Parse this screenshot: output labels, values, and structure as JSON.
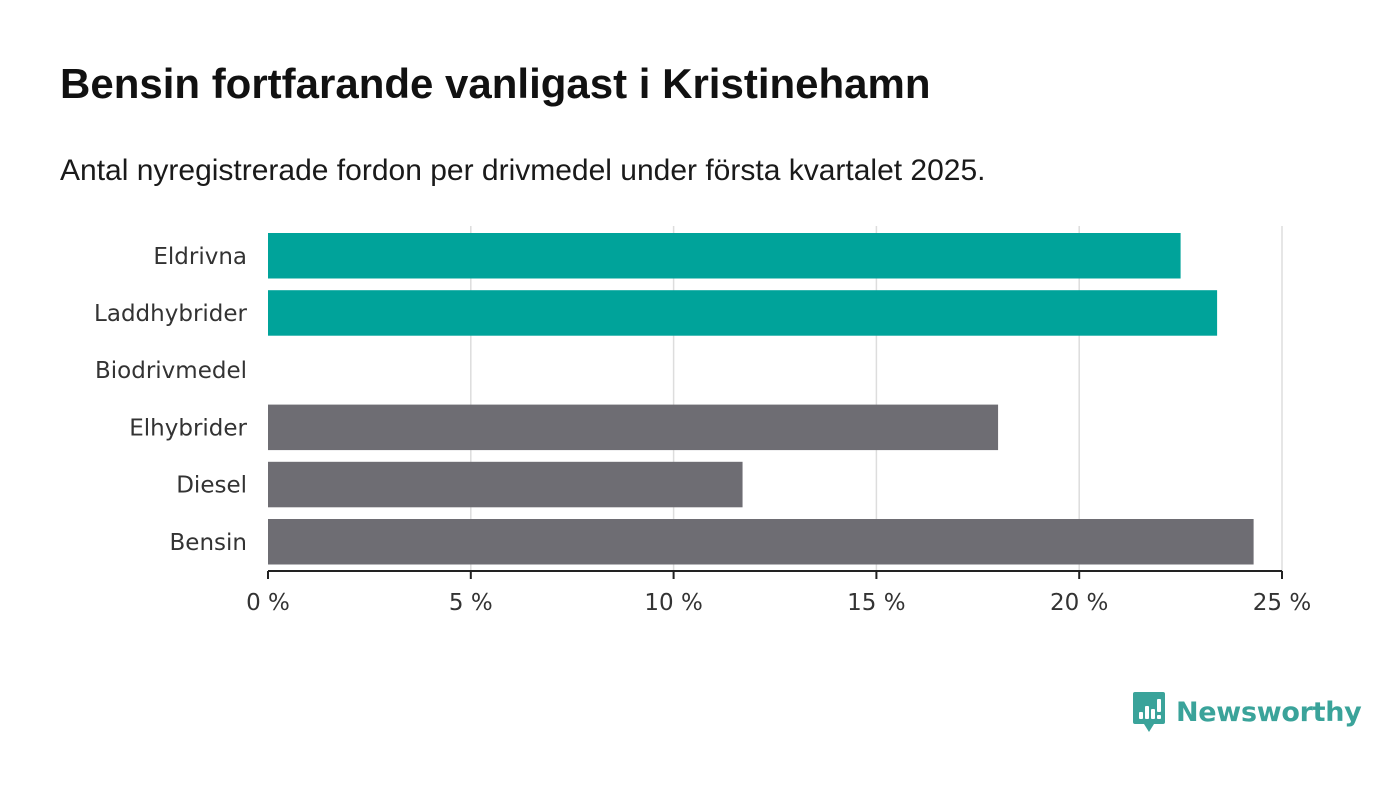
{
  "title": "Bensin fortfarande vanligast i Kristinehamn",
  "subtitle": "Antal nyregistrerade fordon per drivmedel under första kvartalet 2025.",
  "brand": {
    "name": "Newsworthy",
    "color": "#3aa39a",
    "icon": "bar-chart-speech-bubble-icon"
  },
  "colors": {
    "highlight": "#00a39a",
    "default": "#6e6d73",
    "grid": "#dddddd",
    "axis": "#222222"
  },
  "chart_data": {
    "type": "bar",
    "orientation": "horizontal",
    "categories": [
      "Eldrivna",
      "Laddhybrider",
      "Biodrivmedel",
      "Elhybrider",
      "Diesel",
      "Bensin"
    ],
    "values": [
      22.5,
      23.4,
      0,
      18.0,
      11.7,
      24.3
    ],
    "highlighted": [
      true,
      true,
      true,
      false,
      false,
      false
    ],
    "xlim": [
      0,
      25
    ],
    "x_ticks": [
      0,
      5,
      10,
      15,
      20,
      25
    ],
    "x_tick_labels": [
      "0 %",
      "5 %",
      "10 %",
      "15 %",
      "20 %",
      "25 %"
    ],
    "unit": "%",
    "grid": true,
    "legend": "none",
    "xlabel": "",
    "ylabel": ""
  }
}
